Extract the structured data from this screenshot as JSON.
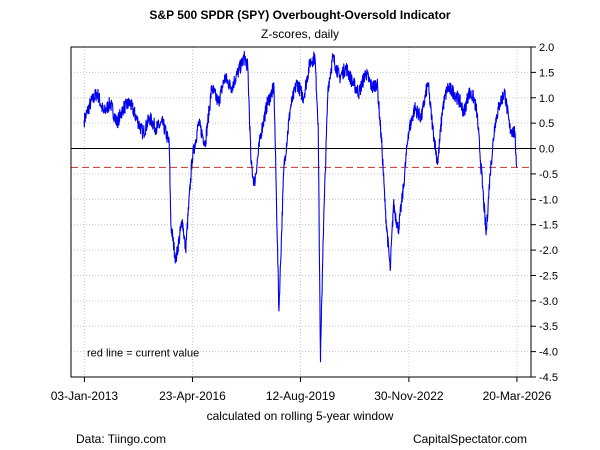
{
  "chart_data": {
    "type": "line",
    "title": "S&P 500 SPDR (SPY) Overbought-Oversold Indicator",
    "subtitle": "Z-scores, daily",
    "xlabel": "calculated on rolling 5-year window",
    "ylim": [
      -4.5,
      2.0
    ],
    "yticks": [
      "2.0",
      "1.5",
      "1.0",
      "0.5",
      "0.0",
      "-0.5",
      "-1.0",
      "-1.5",
      "-2.0",
      "-2.5",
      "-3.0",
      "-3.5",
      "-4.0",
      "-4.5"
    ],
    "xticks": [
      "03-Jan-2013",
      "23-Apr-2016",
      "12-Aug-2019",
      "30-Nov-2022",
      "20-Mar-2026"
    ],
    "grid": true,
    "annotation": "red line = current value",
    "reference_lines": [
      {
        "value": 0.0,
        "color": "#000000",
        "style": "solid"
      },
      {
        "value": -0.37,
        "color": "#c0392b",
        "style": "dashed"
      }
    ],
    "series": [
      {
        "color": "#0000ee",
        "x": [
          2013.0,
          2013.2,
          2013.4,
          2013.6,
          2013.8,
          2014.0,
          2014.2,
          2014.4,
          2014.6,
          2014.8,
          2015.0,
          2015.2,
          2015.4,
          2015.6,
          2015.65,
          2015.8,
          2016.0,
          2016.1,
          2016.3,
          2016.5,
          2016.7,
          2016.9,
          2017.1,
          2017.3,
          2017.5,
          2017.7,
          2017.9,
          2018.0,
          2018.1,
          2018.2,
          2018.4,
          2018.6,
          2018.8,
          2018.95,
          2019.1,
          2019.3,
          2019.5,
          2019.7,
          2019.9,
          2020.05,
          2020.15,
          2020.22,
          2020.3,
          2020.45,
          2020.6,
          2020.8,
          2021.0,
          2021.2,
          2021.4,
          2021.6,
          2021.8,
          2021.95,
          2022.1,
          2022.2,
          2022.35,
          2022.45,
          2022.6,
          2022.75,
          2022.9,
          2023.1,
          2023.3,
          2023.5,
          2023.65,
          2023.8,
          2023.95,
          2024.1,
          2024.3,
          2024.5,
          2024.6,
          2024.75,
          2024.9,
          2025.0,
          2025.2,
          2025.28,
          2025.4,
          2025.55,
          2025.7,
          2025.85,
          2026.0,
          2026.15,
          2026.22
        ],
        "y": [
          0.55,
          0.9,
          1.1,
          0.7,
          0.9,
          0.5,
          0.8,
          0.9,
          0.6,
          0.3,
          0.6,
          0.4,
          0.5,
          0.1,
          -1.5,
          -2.2,
          -1.4,
          -2.0,
          -0.2,
          0.5,
          0.1,
          1.2,
          0.9,
          1.4,
          1.2,
          1.5,
          1.8,
          1.6,
          -0.3,
          -0.7,
          0.3,
          0.9,
          1.2,
          -3.2,
          -0.4,
          0.8,
          1.3,
          1.0,
          1.7,
          1.8,
          0.5,
          -4.2,
          -1.8,
          1.2,
          1.8,
          1.4,
          1.6,
          1.3,
          1.1,
          1.5,
          1.2,
          1.3,
          0.0,
          -1.2,
          -2.4,
          -1.1,
          -1.6,
          -0.8,
          0.3,
          0.8,
          0.6,
          1.3,
          0.4,
          -0.3,
          0.8,
          1.2,
          1.1,
          0.9,
          0.7,
          1.1,
          1.0,
          0.7,
          -1.0,
          -1.7,
          -0.5,
          0.5,
          0.9,
          1.1,
          0.4,
          0.3,
          -0.37
        ]
      }
    ]
  },
  "footer": {
    "source_left": "Data: Tiingo.com",
    "source_right": "CapitalSpectator.com"
  }
}
